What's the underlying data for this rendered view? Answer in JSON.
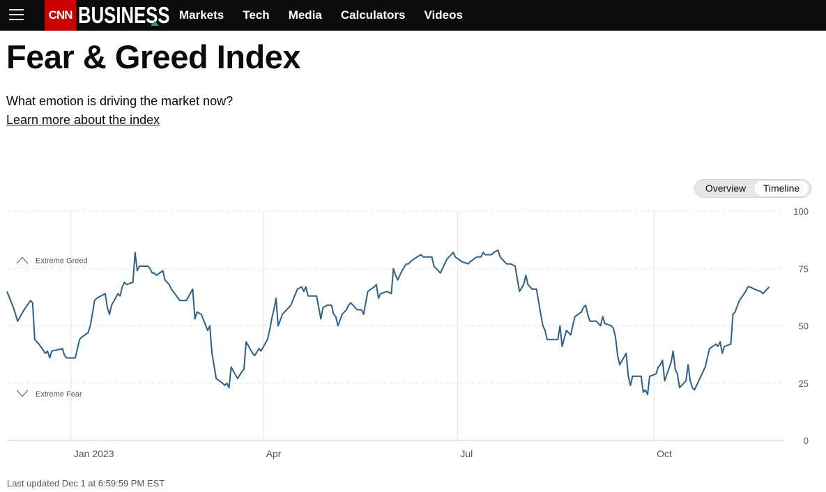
{
  "header": {
    "logo_cnn": "CNN",
    "logo_business": "BUSINESS",
    "nav": [
      "Markets",
      "Tech",
      "Media",
      "Calculators",
      "Videos"
    ]
  },
  "page": {
    "title": "Fear & Greed Index",
    "subtitle": "What emotion is driving the market now?",
    "learn_link": "Learn more about the index",
    "toggle": {
      "overview": "Overview",
      "timeline": "Timeline",
      "selected": "Timeline"
    },
    "last_updated": "Last updated Dec 1 at 6:59:59 PM EST"
  },
  "colors": {
    "line": "#2c5f8a",
    "nav_bg": "#0c0c0c",
    "logo_red": "#cc0000",
    "accent": "#1fa27a"
  },
  "chart_data": {
    "type": "line",
    "x_range": [
      "2022-12-02",
      "2023-12-01"
    ],
    "ylim": [
      0,
      100
    ],
    "y_ticks": [
      0,
      25,
      50,
      75,
      100
    ],
    "x_ticks": [
      {
        "label": "Jan 2023",
        "date": "2023-01-01"
      },
      {
        "label": "Apr",
        "date": "2023-04-01"
      },
      {
        "label": "Jul",
        "date": "2023-07-01"
      },
      {
        "label": "Oct",
        "date": "2023-10-01"
      }
    ],
    "annotations": [
      {
        "label": "Extreme Greed",
        "value": 75
      },
      {
        "label": "Extreme Fear",
        "value": 25
      }
    ],
    "series": [
      {
        "points": [
          [
            "2022-12-02",
            65
          ],
          [
            "2022-12-05",
            58
          ],
          [
            "2022-12-07",
            52
          ],
          [
            "2022-12-10",
            57
          ],
          [
            "2022-12-13",
            61
          ],
          [
            "2022-12-14",
            60
          ],
          [
            "2022-12-15",
            44
          ],
          [
            "2022-12-17",
            42
          ],
          [
            "2022-12-20",
            38
          ],
          [
            "2022-12-21",
            39
          ],
          [
            "2022-12-22",
            36
          ],
          [
            "2022-12-23",
            39
          ],
          [
            "2022-12-28",
            40
          ],
          [
            "2022-12-29",
            37
          ],
          [
            "2022-12-30",
            36
          ],
          [
            "2023-01-03",
            36
          ],
          [
            "2023-01-05",
            44
          ],
          [
            "2023-01-06",
            45
          ],
          [
            "2023-01-09",
            47
          ],
          [
            "2023-01-10",
            50
          ],
          [
            "2023-01-11",
            55
          ],
          [
            "2023-01-12",
            61
          ],
          [
            "2023-01-13",
            62
          ],
          [
            "2023-01-17",
            64
          ],
          [
            "2023-01-18",
            58
          ],
          [
            "2023-01-19",
            55
          ],
          [
            "2023-01-20",
            59
          ],
          [
            "2023-01-23",
            64
          ],
          [
            "2023-01-24",
            63
          ],
          [
            "2023-01-25",
            67
          ],
          [
            "2023-01-26",
            69
          ],
          [
            "2023-01-27",
            68
          ],
          [
            "2023-01-30",
            69
          ],
          [
            "2023-01-31",
            82
          ],
          [
            "2023-02-01",
            74
          ],
          [
            "2023-02-02",
            76
          ],
          [
            "2023-02-03",
            76
          ],
          [
            "2023-02-06",
            76
          ],
          [
            "2023-02-07",
            75
          ],
          [
            "2023-02-08",
            73
          ],
          [
            "2023-02-09",
            73
          ],
          [
            "2023-02-10",
            72
          ],
          [
            "2023-02-13",
            74
          ],
          [
            "2023-02-14",
            70
          ],
          [
            "2023-02-16",
            68
          ],
          [
            "2023-02-17",
            66
          ],
          [
            "2023-02-21",
            61
          ],
          [
            "2023-02-24",
            61
          ],
          [
            "2023-02-27",
            66
          ],
          [
            "2023-02-28",
            53
          ],
          [
            "2023-03-01",
            56
          ],
          [
            "2023-03-03",
            55
          ],
          [
            "2023-03-06",
            48
          ],
          [
            "2023-03-07",
            50
          ],
          [
            "2023-03-08",
            38
          ],
          [
            "2023-03-10",
            27
          ],
          [
            "2023-03-13",
            25
          ],
          [
            "2023-03-14",
            24
          ],
          [
            "2023-03-15",
            25
          ],
          [
            "2023-03-16",
            23
          ],
          [
            "2023-03-17",
            32
          ],
          [
            "2023-03-20",
            27
          ],
          [
            "2023-03-22",
            30
          ],
          [
            "2023-03-23",
            31
          ],
          [
            "2023-03-24",
            43
          ],
          [
            "2023-03-27",
            38
          ],
          [
            "2023-03-28",
            37
          ],
          [
            "2023-03-30",
            40
          ],
          [
            "2023-03-31",
            39
          ],
          [
            "2023-04-03",
            44
          ],
          [
            "2023-04-04",
            48
          ],
          [
            "2023-04-05",
            53
          ],
          [
            "2023-04-06",
            57
          ],
          [
            "2023-04-07",
            62
          ],
          [
            "2023-04-08",
            50
          ],
          [
            "2023-04-10",
            55
          ],
          [
            "2023-04-13",
            58
          ],
          [
            "2023-04-14",
            59
          ],
          [
            "2023-04-17",
            66
          ],
          [
            "2023-04-19",
            67
          ],
          [
            "2023-04-20",
            65
          ],
          [
            "2023-04-21",
            67
          ],
          [
            "2023-04-22",
            63
          ],
          [
            "2023-04-26",
            63
          ],
          [
            "2023-04-28",
            53
          ],
          [
            "2023-04-29",
            58
          ],
          [
            "2023-05-01",
            59
          ],
          [
            "2023-05-03",
            59
          ],
          [
            "2023-05-04",
            55
          ],
          [
            "2023-05-05",
            54
          ],
          [
            "2023-05-06",
            50
          ],
          [
            "2023-05-08",
            55
          ],
          [
            "2023-05-10",
            57
          ],
          [
            "2023-05-11",
            59
          ],
          [
            "2023-05-12",
            60
          ],
          [
            "2023-05-15",
            57
          ],
          [
            "2023-05-17",
            57
          ],
          [
            "2023-05-18",
            55
          ],
          [
            "2023-05-20",
            65
          ],
          [
            "2023-05-23",
            67
          ],
          [
            "2023-05-24",
            68
          ],
          [
            "2023-05-25",
            62
          ],
          [
            "2023-05-26",
            64
          ],
          [
            "2023-05-29",
            65
          ],
          [
            "2023-05-31",
            64
          ],
          [
            "2023-06-01",
            75
          ],
          [
            "2023-06-02",
            72
          ],
          [
            "2023-06-03",
            70
          ],
          [
            "2023-06-05",
            74
          ],
          [
            "2023-06-07",
            77
          ],
          [
            "2023-06-08",
            77
          ],
          [
            "2023-06-09",
            78
          ],
          [
            "2023-06-12",
            80
          ],
          [
            "2023-06-14",
            81
          ],
          [
            "2023-06-15",
            80
          ],
          [
            "2023-06-19",
            80
          ],
          [
            "2023-06-20",
            76
          ],
          [
            "2023-06-23",
            73
          ],
          [
            "2023-06-26",
            79
          ],
          [
            "2023-06-28",
            81
          ],
          [
            "2023-06-29",
            82
          ],
          [
            "2023-06-30",
            80
          ],
          [
            "2023-07-03",
            78
          ],
          [
            "2023-07-06",
            77
          ],
          [
            "2023-07-07",
            78
          ],
          [
            "2023-07-10",
            80
          ],
          [
            "2023-07-12",
            80
          ],
          [
            "2023-07-13",
            82
          ],
          [
            "2023-07-14",
            81
          ],
          [
            "2023-07-17",
            81
          ],
          [
            "2023-07-18",
            82
          ],
          [
            "2023-07-20",
            83
          ],
          [
            "2023-07-21",
            80
          ],
          [
            "2023-07-23",
            78
          ],
          [
            "2023-07-24",
            77
          ],
          [
            "2023-07-26",
            77
          ],
          [
            "2023-07-28",
            76
          ],
          [
            "2023-07-30",
            65
          ],
          [
            "2023-08-01",
            68
          ],
          [
            "2023-08-02",
            72
          ],
          [
            "2023-08-03",
            68
          ],
          [
            "2023-08-05",
            66
          ],
          [
            "2023-08-07",
            66
          ],
          [
            "2023-08-09",
            55
          ],
          [
            "2023-08-10",
            50
          ],
          [
            "2023-08-11",
            48
          ],
          [
            "2023-08-12",
            44
          ],
          [
            "2023-08-14",
            44
          ],
          [
            "2023-08-17",
            44
          ],
          [
            "2023-08-18",
            50
          ],
          [
            "2023-08-19",
            41
          ],
          [
            "2023-08-21",
            48
          ],
          [
            "2023-08-23",
            46
          ],
          [
            "2023-08-24",
            50
          ],
          [
            "2023-08-25",
            54
          ],
          [
            "2023-08-28",
            56
          ],
          [
            "2023-08-29",
            58
          ],
          [
            "2023-08-30",
            59
          ],
          [
            "2023-08-31",
            55
          ],
          [
            "2023-09-01",
            52
          ],
          [
            "2023-09-04",
            52
          ],
          [
            "2023-09-06",
            50
          ],
          [
            "2023-09-07",
            54
          ],
          [
            "2023-09-08",
            51
          ],
          [
            "2023-09-11",
            50
          ],
          [
            "2023-09-12",
            49
          ],
          [
            "2023-09-13",
            45
          ],
          [
            "2023-09-14",
            37
          ],
          [
            "2023-09-15",
            33
          ],
          [
            "2023-09-18",
            38
          ],
          [
            "2023-09-19",
            28
          ],
          [
            "2023-09-20",
            24
          ],
          [
            "2023-09-21",
            28
          ],
          [
            "2023-09-22",
            28
          ],
          [
            "2023-09-25",
            28
          ],
          [
            "2023-09-26",
            21
          ],
          [
            "2023-09-27",
            22
          ],
          [
            "2023-09-28",
            20
          ],
          [
            "2023-09-29",
            28
          ],
          [
            "2023-10-02",
            29
          ],
          [
            "2023-10-03",
            32
          ],
          [
            "2023-10-04",
            33
          ],
          [
            "2023-10-05",
            35
          ],
          [
            "2023-10-06",
            26
          ],
          [
            "2023-10-09",
            34
          ],
          [
            "2023-10-10",
            39
          ],
          [
            "2023-10-11",
            31
          ],
          [
            "2023-10-12",
            29
          ],
          [
            "2023-10-13",
            23
          ],
          [
            "2023-10-16",
            26
          ],
          [
            "2023-10-17",
            33
          ],
          [
            "2023-10-18",
            26
          ],
          [
            "2023-10-19",
            23
          ],
          [
            "2023-10-20",
            22
          ],
          [
            "2023-10-23",
            28
          ],
          [
            "2023-10-24",
            30
          ],
          [
            "2023-10-25",
            32
          ],
          [
            "2023-10-27",
            40
          ],
          [
            "2023-10-30",
            42
          ],
          [
            "2023-10-31",
            41
          ],
          [
            "2023-11-01",
            43
          ],
          [
            "2023-11-02",
            38
          ],
          [
            "2023-11-03",
            41
          ],
          [
            "2023-11-06",
            42
          ],
          [
            "2023-11-07",
            55
          ],
          [
            "2023-11-08",
            56
          ],
          [
            "2023-11-10",
            61
          ],
          [
            "2023-11-13",
            65
          ],
          [
            "2023-11-14",
            67
          ],
          [
            "2023-11-15",
            67
          ],
          [
            "2023-11-17",
            66
          ],
          [
            "2023-11-20",
            65
          ],
          [
            "2023-11-21",
            64
          ],
          [
            "2023-11-22",
            65
          ],
          [
            "2023-11-24",
            67
          ]
        ]
      }
    ]
  }
}
